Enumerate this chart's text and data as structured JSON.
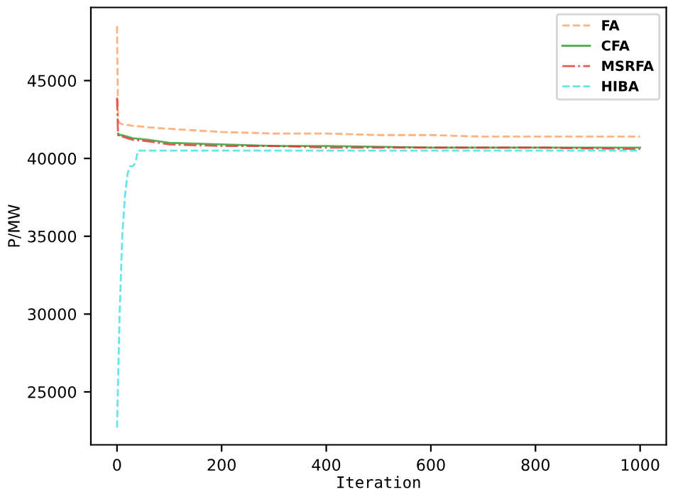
{
  "chart_data": {
    "type": "line",
    "xlabel": "Iteration",
    "ylabel": "P/MW",
    "xlim": [
      -50,
      1050
    ],
    "ylim": [
      21600,
      49700
    ],
    "xticks": [
      0,
      200,
      400,
      600,
      800,
      1000
    ],
    "yticks": [
      25000,
      30000,
      35000,
      40000,
      45000
    ],
    "legend": "top right",
    "grid": false,
    "series": [
      {
        "name": "FA",
        "color": "#ffa060",
        "line_style": "dashed",
        "x": [
          0,
          2,
          4,
          10,
          30,
          60,
          100,
          200,
          300,
          400,
          500,
          600,
          700,
          800,
          900,
          1000
        ],
        "values": [
          48500,
          42600,
          42300,
          42200,
          42100,
          42000,
          41900,
          41700,
          41600,
          41600,
          41500,
          41500,
          41400,
          41400,
          41400,
          41400
        ]
      },
      {
        "name": "CFA",
        "color": "#2ca02c",
        "line_style": "solid",
        "x": [
          2,
          5,
          10,
          30,
          60,
          100,
          200,
          300,
          400,
          600,
          800,
          1000
        ],
        "values": [
          41600,
          41500,
          41500,
          41300,
          41200,
          41000,
          40900,
          40800,
          40800,
          40700,
          40700,
          40700
        ]
      },
      {
        "name": "MSRFA",
        "color": "#e03030",
        "line_style": "dashdot",
        "x": [
          0,
          2,
          5,
          10,
          30,
          60,
          100,
          200,
          300,
          400,
          600,
          800,
          1000
        ],
        "values": [
          43900,
          41500,
          41400,
          41400,
          41200,
          41100,
          40900,
          40800,
          40800,
          40700,
          40700,
          40700,
          40600
        ]
      },
      {
        "name": "HIBA",
        "color": "#40e0e0",
        "line_style": "dashed",
        "x": [
          0,
          5,
          10,
          15,
          20,
          25,
          30,
          35,
          40,
          100,
          200,
          400,
          600,
          800,
          1000
        ],
        "values": [
          22700,
          30000,
          35000,
          37500,
          39000,
          39500,
          39500,
          39700,
          40500,
          40500,
          40500,
          40500,
          40500,
          40500,
          40500
        ]
      }
    ]
  }
}
